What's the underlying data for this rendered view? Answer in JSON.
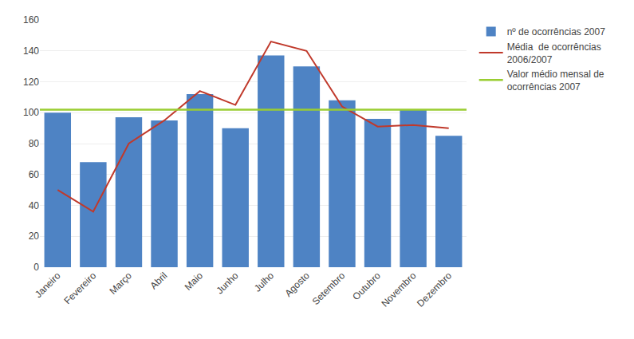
{
  "chart_data": {
    "type": "bar",
    "categories": [
      "Janeiro",
      "Fevereiro",
      "Março",
      "Abril",
      "Maio",
      "Junho",
      "Julho",
      "Agosto",
      "Setembro",
      "Outubro",
      "Novembro",
      "Dezembro"
    ],
    "series": [
      {
        "name": "nº de ocorrências 2007",
        "type": "bar",
        "color": "#4e83c4",
        "values": [
          100,
          68,
          97,
          95,
          112,
          90,
          137,
          130,
          108,
          96,
          102,
          85
        ]
      },
      {
        "name": "Média  de ocorrências\n2006/2007",
        "type": "line",
        "color": "#c0392b",
        "values": [
          50,
          36,
          80,
          95,
          114,
          105,
          146,
          140,
          104,
          91,
          92,
          90
        ]
      },
      {
        "name": "Valor médio mensal de\nocorrências 2007",
        "type": "hline",
        "color": "#9acd32",
        "value": 102
      }
    ],
    "ylim": [
      0,
      160
    ],
    "yticks": [
      0,
      20,
      40,
      60,
      80,
      100,
      120,
      140,
      160
    ],
    "grid": true,
    "legend": "right"
  }
}
